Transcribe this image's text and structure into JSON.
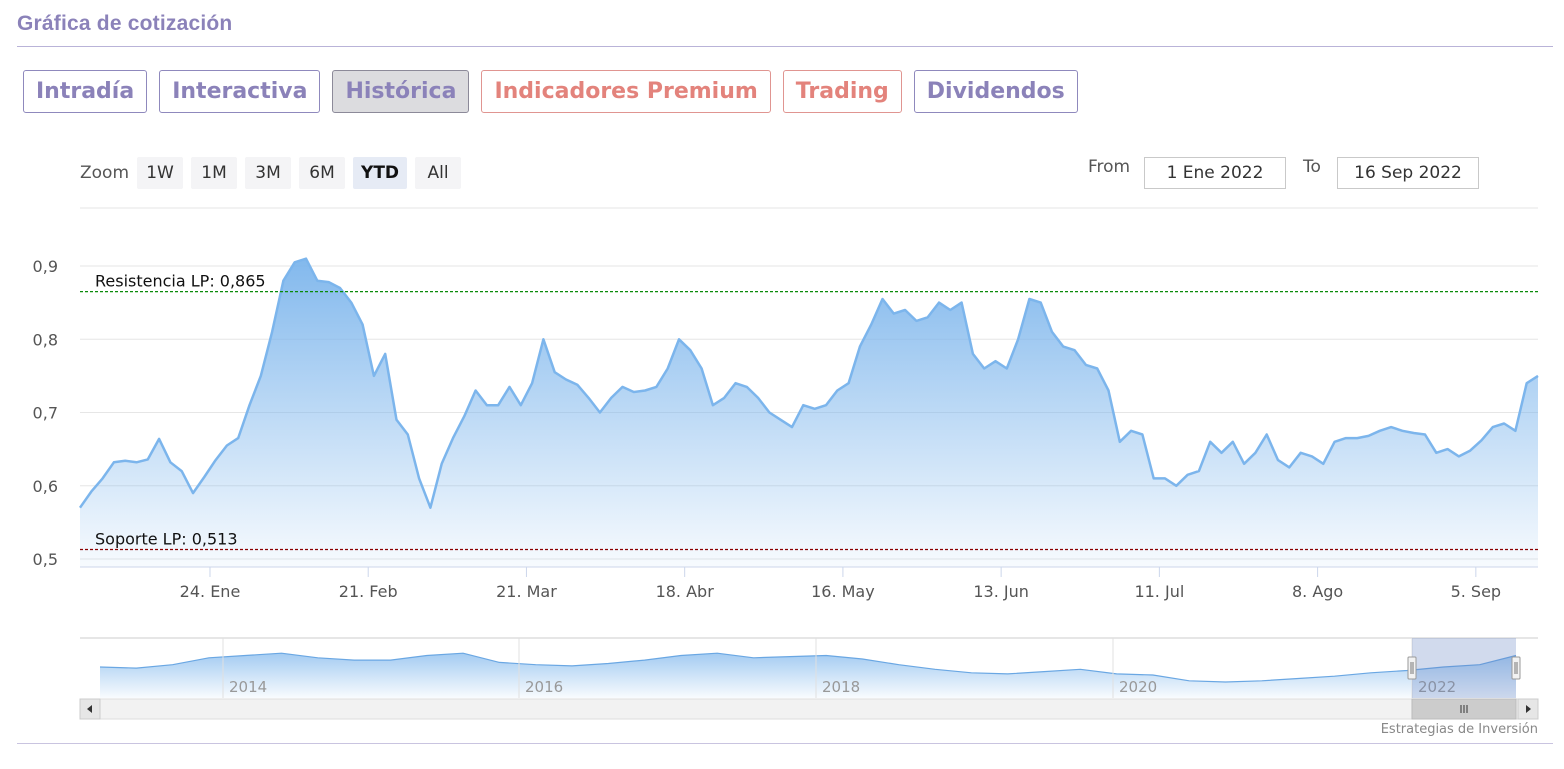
{
  "section": {
    "title": "Gráfica de cotización"
  },
  "tabs": [
    {
      "label": "Intradía",
      "style": "normal"
    },
    {
      "label": "Interactiva",
      "style": "normal"
    },
    {
      "label": "Histórica",
      "style": "active"
    },
    {
      "label": "Indicadores Premium",
      "style": "premium"
    },
    {
      "label": "Trading",
      "style": "premium"
    },
    {
      "label": "Dividendos",
      "style": "normal"
    }
  ],
  "zoom": {
    "label": "Zoom",
    "buttons": [
      "1W",
      "1M",
      "3M",
      "6M",
      "YTD",
      "All"
    ],
    "selected": "YTD"
  },
  "range": {
    "from_label": "From",
    "from_value": "1 Ene 2022",
    "to_label": "To",
    "to_value": "16 Sep 2022"
  },
  "credit": "Estrategias de Inversión",
  "colors": {
    "accent": "#8b82b9",
    "premium": "#e3837c",
    "series": "#7cb5ec",
    "resistance": "#0a8a0a",
    "support": "#8b0000"
  },
  "chart_data": {
    "type": "area",
    "title": "",
    "xlabel": "",
    "ylabel": "",
    "ylim": [
      0.5,
      0.9
    ],
    "yticks": [
      0.5,
      0.6,
      0.7,
      0.8,
      0.9
    ],
    "ytick_labels": [
      "0,5",
      "0,6",
      "0,7",
      "0,8",
      "0,9"
    ],
    "x_range": [
      "2022-01-01",
      "2022-09-16"
    ],
    "xticks": [
      {
        "date": "2022-01-24",
        "label": "24. Ene"
      },
      {
        "date": "2022-02-21",
        "label": "21. Feb"
      },
      {
        "date": "2022-03-21",
        "label": "21. Mar"
      },
      {
        "date": "2022-04-18",
        "label": "18. Abr"
      },
      {
        "date": "2022-05-16",
        "label": "16. May"
      },
      {
        "date": "2022-06-13",
        "label": "13. Jun"
      },
      {
        "date": "2022-07-11",
        "label": "11. Jul"
      },
      {
        "date": "2022-08-08",
        "label": "8. Ago"
      },
      {
        "date": "2022-09-05",
        "label": "5. Sep"
      }
    ],
    "grid": true,
    "reference_lines": [
      {
        "label": "Resistencia LP: 0,865",
        "value": 0.865,
        "color": "#0a8a0a"
      },
      {
        "label": "Soporte LP: 0,513",
        "value": 0.513,
        "color": "#8b0000"
      }
    ],
    "series": [
      {
        "x": [
          "2022-01-01",
          "2022-01-03",
          "2022-01-05",
          "2022-01-07",
          "2022-01-09",
          "2022-01-11",
          "2022-01-13",
          "2022-01-15",
          "2022-01-17",
          "2022-01-19",
          "2022-01-21",
          "2022-01-23",
          "2022-01-25",
          "2022-01-27",
          "2022-01-29",
          "2022-01-31",
          "2022-02-02",
          "2022-02-04",
          "2022-02-06",
          "2022-02-08",
          "2022-02-10",
          "2022-02-12",
          "2022-02-14",
          "2022-02-16",
          "2022-02-18",
          "2022-02-20",
          "2022-02-22",
          "2022-02-24",
          "2022-02-26",
          "2022-02-28",
          "2022-03-02",
          "2022-03-04",
          "2022-03-06",
          "2022-03-08",
          "2022-03-10",
          "2022-03-12",
          "2022-03-14",
          "2022-03-16",
          "2022-03-18",
          "2022-03-20",
          "2022-03-22",
          "2022-03-24",
          "2022-03-26",
          "2022-03-28",
          "2022-03-30",
          "2022-04-01",
          "2022-04-03",
          "2022-04-05",
          "2022-04-07",
          "2022-04-09",
          "2022-04-11",
          "2022-04-13",
          "2022-04-15",
          "2022-04-17",
          "2022-04-19",
          "2022-04-21",
          "2022-04-23",
          "2022-04-25",
          "2022-04-27",
          "2022-04-29",
          "2022-05-01",
          "2022-05-03",
          "2022-05-05",
          "2022-05-07",
          "2022-05-09",
          "2022-05-11",
          "2022-05-13",
          "2022-05-15",
          "2022-05-17",
          "2022-05-19",
          "2022-05-21",
          "2022-05-23",
          "2022-05-25",
          "2022-05-27",
          "2022-05-29",
          "2022-05-31",
          "2022-06-02",
          "2022-06-04",
          "2022-06-06",
          "2022-06-08",
          "2022-06-10",
          "2022-06-12",
          "2022-06-14",
          "2022-06-16",
          "2022-06-18",
          "2022-06-20",
          "2022-06-22",
          "2022-06-24",
          "2022-06-26",
          "2022-06-28",
          "2022-06-30",
          "2022-07-02",
          "2022-07-04",
          "2022-07-06",
          "2022-07-08",
          "2022-07-10",
          "2022-07-12",
          "2022-07-14",
          "2022-07-16",
          "2022-07-18",
          "2022-07-20",
          "2022-07-22",
          "2022-07-24",
          "2022-07-26",
          "2022-07-28",
          "2022-07-30",
          "2022-08-01",
          "2022-08-03",
          "2022-08-05",
          "2022-08-07",
          "2022-08-09",
          "2022-08-11",
          "2022-08-13",
          "2022-08-15",
          "2022-08-17",
          "2022-08-19",
          "2022-08-21",
          "2022-08-23",
          "2022-08-25",
          "2022-08-27",
          "2022-08-29",
          "2022-08-31",
          "2022-09-02",
          "2022-09-04",
          "2022-09-06",
          "2022-09-08",
          "2022-09-10",
          "2022-09-12",
          "2022-09-14",
          "2022-09-16"
        ],
        "y": [
          0.57,
          0.592,
          0.61,
          0.632,
          0.634,
          0.632,
          0.636,
          0.664,
          0.632,
          0.62,
          0.59,
          0.612,
          0.635,
          0.655,
          0.665,
          0.71,
          0.75,
          0.81,
          0.88,
          0.905,
          0.91,
          0.88,
          0.878,
          0.87,
          0.85,
          0.82,
          0.75,
          0.78,
          0.69,
          0.67,
          0.61,
          0.57,
          0.63,
          0.665,
          0.695,
          0.73,
          0.71,
          0.71,
          0.735,
          0.71,
          0.74,
          0.8,
          0.755,
          0.745,
          0.738,
          0.72,
          0.7,
          0.72,
          0.735,
          0.728,
          0.73,
          0.735,
          0.76,
          0.8,
          0.785,
          0.76,
          0.71,
          0.72,
          0.74,
          0.735,
          0.72,
          0.7,
          0.69,
          0.68,
          0.71,
          0.705,
          0.71,
          0.73,
          0.74,
          0.79,
          0.82,
          0.855,
          0.835,
          0.84,
          0.825,
          0.83,
          0.85,
          0.84,
          0.85,
          0.78,
          0.76,
          0.77,
          0.76,
          0.8,
          0.855,
          0.85,
          0.81,
          0.79,
          0.785,
          0.765,
          0.76,
          0.73,
          0.66,
          0.675,
          0.67,
          0.61,
          0.61,
          0.6,
          0.615,
          0.62,
          0.66,
          0.645,
          0.66,
          0.63,
          0.645,
          0.67,
          0.635,
          0.625,
          0.645,
          0.64,
          0.63,
          0.66,
          0.665,
          0.665,
          0.668,
          0.675,
          0.68,
          0.675,
          0.672,
          0.67,
          0.645,
          0.65,
          0.64,
          0.648,
          0.662,
          0.68,
          0.685,
          0.675,
          0.74,
          0.75
        ]
      }
    ],
    "navigator": {
      "tick_labels": [
        "2014",
        "2016",
        "2018",
        "2020",
        "2022"
      ],
      "series": [
        0.6,
        0.59,
        0.62,
        0.68,
        0.7,
        0.72,
        0.68,
        0.66,
        0.66,
        0.7,
        0.72,
        0.64,
        0.62,
        0.61,
        0.63,
        0.66,
        0.7,
        0.72,
        0.68,
        0.69,
        0.7,
        0.67,
        0.62,
        0.58,
        0.55,
        0.54,
        0.56,
        0.58,
        0.54,
        0.53,
        0.48,
        0.47,
        0.48,
        0.5,
        0.52,
        0.55,
        0.57,
        0.6,
        0.62,
        0.7
      ]
    }
  }
}
